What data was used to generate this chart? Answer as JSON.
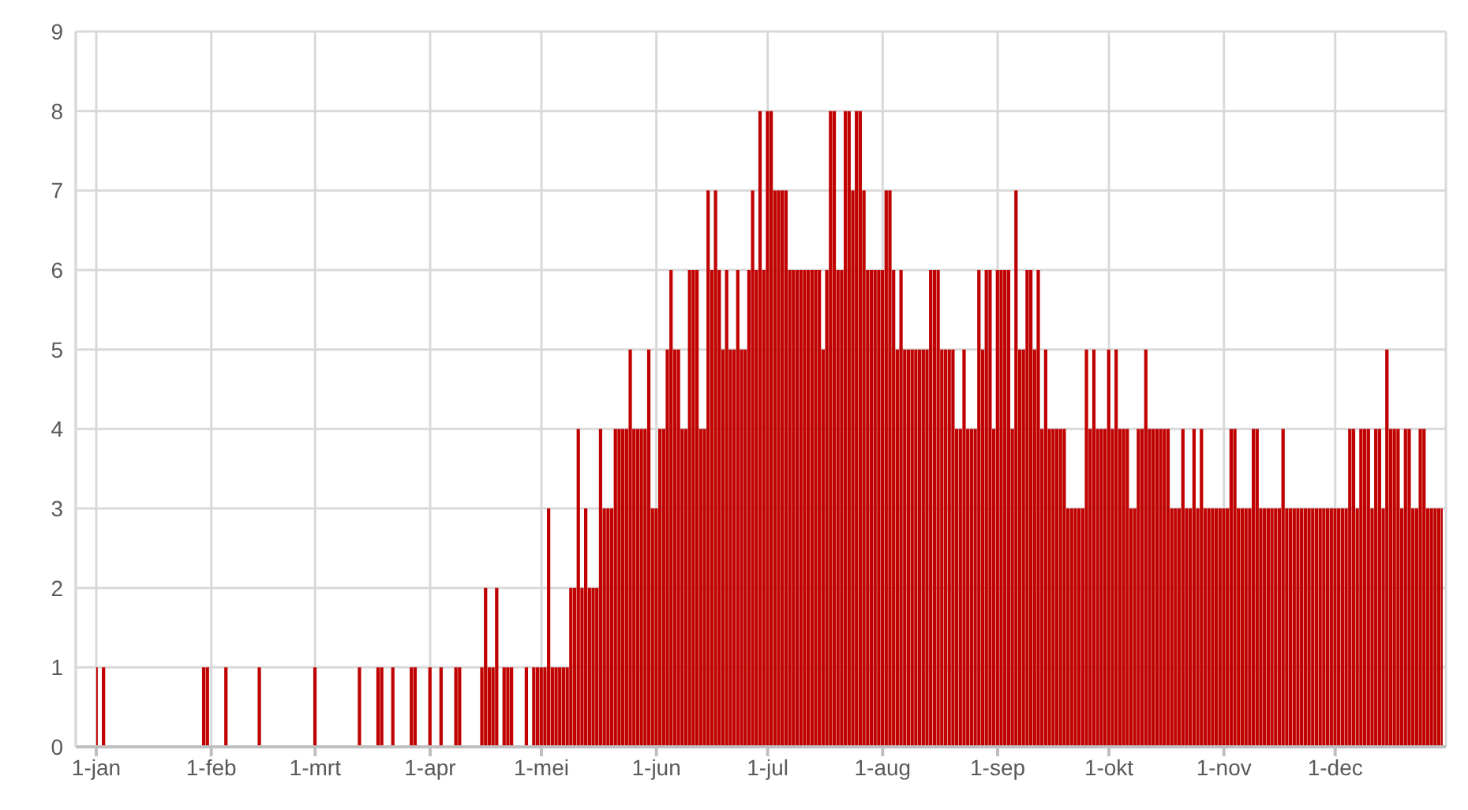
{
  "chart_data": {
    "type": "bar",
    "color": "#c00000",
    "grid": true,
    "ylim": [
      0,
      9
    ],
    "yticks": [
      0,
      1,
      2,
      3,
      4,
      5,
      6,
      7,
      8,
      9
    ],
    "xlim": [
      "--01-01",
      "--12-30"
    ],
    "xticks": [
      {
        "value": "--01-01",
        "label": "1-jan"
      },
      {
        "value": "--02-01",
        "label": "1-feb"
      },
      {
        "value": "--03-01",
        "label": "1-mrt"
      },
      {
        "value": "--04-01",
        "label": "1-apr"
      },
      {
        "value": "--05-01",
        "label": "1-mei"
      },
      {
        "value": "--06-01",
        "label": "1-jun"
      },
      {
        "value": "--07-01",
        "label": "1-jul"
      },
      {
        "value": "--08-01",
        "label": "1-aug"
      },
      {
        "value": "--09-01",
        "label": "1-sep"
      },
      {
        "value": "--10-01",
        "label": "1-okt"
      },
      {
        "value": "--11-01",
        "label": "1-nov"
      },
      {
        "value": "--12-01",
        "label": "1-dec"
      }
    ],
    "x": [
      "--01-01",
      "--01-03",
      "--01-30",
      "--01-31",
      "--02-05",
      "--02-14",
      "--03-01",
      "--03-13",
      "--03-18",
      "--03-19",
      "--03-22",
      "--03-27",
      "--03-28",
      "--04-01",
      "--04-04",
      "--04-08",
      "--04-09",
      "--04-15",
      "--04-16",
      "--04-17",
      "--04-18",
      "--04-19",
      "--04-21",
      "--04-22",
      "--04-23",
      "--04-27",
      "--04-29",
      "--04-30",
      "--05-01",
      "--05-02",
      "--05-03",
      "--05-04",
      "--05-05",
      "--05-06",
      "--05-07",
      "--05-08",
      "--05-09",
      "--05-10",
      "--05-11",
      "--05-12",
      "--05-13",
      "--05-14",
      "--05-15",
      "--05-16",
      "--05-17",
      "--05-18",
      "--05-19",
      "--05-20",
      "--05-21",
      "--05-22",
      "--05-23",
      "--05-24",
      "--05-25",
      "--05-26",
      "--05-27",
      "--05-28",
      "--05-29",
      "--05-30",
      "--05-31",
      "--06-01",
      "--06-02",
      "--06-03",
      "--06-04",
      "--06-05",
      "--06-06",
      "--06-07",
      "--06-08",
      "--06-09",
      "--06-10",
      "--06-11",
      "--06-12",
      "--06-13",
      "--06-14",
      "--06-15",
      "--06-16",
      "--06-17",
      "--06-18",
      "--06-19",
      "--06-20",
      "--06-21",
      "--06-22",
      "--06-23",
      "--06-24",
      "--06-25",
      "--06-26",
      "--06-27",
      "--06-28",
      "--06-29",
      "--06-30",
      "--07-01",
      "--07-02",
      "--07-03",
      "--07-04",
      "--07-05",
      "--07-06",
      "--07-07",
      "--07-08",
      "--07-09",
      "--07-10",
      "--07-11",
      "--07-12",
      "--07-13",
      "--07-14",
      "--07-15",
      "--07-16",
      "--07-17",
      "--07-18",
      "--07-19",
      "--07-20",
      "--07-21",
      "--07-22",
      "--07-23",
      "--07-24",
      "--07-25",
      "--07-26",
      "--07-27",
      "--07-28",
      "--07-29",
      "--07-30",
      "--07-31",
      "--08-01",
      "--08-02",
      "--08-03",
      "--08-04",
      "--08-05",
      "--08-06",
      "--08-07",
      "--08-08",
      "--08-09",
      "--08-10",
      "--08-11",
      "--08-12",
      "--08-13",
      "--08-14",
      "--08-15",
      "--08-16",
      "--08-17",
      "--08-18",
      "--08-19",
      "--08-20",
      "--08-21",
      "--08-22",
      "--08-23",
      "--08-24",
      "--08-25",
      "--08-26",
      "--08-27",
      "--08-28",
      "--08-29",
      "--08-30",
      "--08-31",
      "--09-01",
      "--09-02",
      "--09-03",
      "--09-04",
      "--09-05",
      "--09-06",
      "--09-07",
      "--09-08",
      "--09-09",
      "--09-10",
      "--09-11",
      "--09-12",
      "--09-13",
      "--09-14",
      "--09-15",
      "--09-16",
      "--09-17",
      "--09-18",
      "--09-19",
      "--09-20",
      "--09-21",
      "--09-22",
      "--09-23",
      "--09-24",
      "--09-25",
      "--09-26",
      "--09-27",
      "--09-28",
      "--09-29",
      "--09-30",
      "--10-01",
      "--10-02",
      "--10-03",
      "--10-04",
      "--10-05",
      "--10-06",
      "--10-07",
      "--10-08",
      "--10-09",
      "--10-10",
      "--10-11",
      "--10-12",
      "--10-13",
      "--10-14",
      "--10-15",
      "--10-16",
      "--10-17",
      "--10-18",
      "--10-19",
      "--10-20",
      "--10-21",
      "--10-22",
      "--10-23",
      "--10-24",
      "--10-25",
      "--10-26",
      "--10-27",
      "--10-28",
      "--10-29",
      "--10-30",
      "--10-31",
      "--11-01",
      "--11-02",
      "--11-03",
      "--11-04",
      "--11-05",
      "--11-06",
      "--11-07",
      "--11-08",
      "--11-09",
      "--11-10",
      "--11-11",
      "--11-12",
      "--11-13",
      "--11-14",
      "--11-15",
      "--11-16",
      "--11-17",
      "--11-18",
      "--11-19",
      "--11-20",
      "--11-21",
      "--11-22",
      "--11-23",
      "--11-24",
      "--11-25",
      "--11-26",
      "--11-27",
      "--11-28",
      "--11-29",
      "--11-30",
      "--12-01",
      "--12-02",
      "--12-03",
      "--12-04",
      "--12-05",
      "--12-06",
      "--12-07",
      "--12-08",
      "--12-09",
      "--12-10",
      "--12-11",
      "--12-12",
      "--12-13",
      "--12-14",
      "--12-15",
      "--12-16",
      "--12-17",
      "--12-18",
      "--12-19",
      "--12-20",
      "--12-21",
      "--12-22",
      "--12-23",
      "--12-24",
      "--12-25",
      "--12-26",
      "--12-27",
      "--12-28",
      "--12-29",
      "--12-30"
    ],
    "values": [
      1,
      1,
      1,
      1,
      1,
      1,
      1,
      1,
      1,
      1,
      1,
      1,
      1,
      1,
      1,
      1,
      1,
      1,
      2,
      1,
      1,
      2,
      1,
      1,
      1,
      1,
      1,
      1,
      1,
      1,
      3,
      1,
      1,
      1,
      1,
      1,
      2,
      2,
      4,
      2,
      3,
      2,
      2,
      2,
      4,
      3,
      3,
      3,
      4,
      4,
      4,
      4,
      5,
      4,
      4,
      4,
      4,
      5,
      3,
      3,
      4,
      4,
      5,
      6,
      5,
      5,
      4,
      4,
      6,
      6,
      6,
      4,
      4,
      7,
      6,
      7,
      6,
      5,
      6,
      5,
      5,
      6,
      5,
      5,
      6,
      7,
      6,
      8,
      6,
      8,
      8,
      7,
      7,
      7,
      7,
      6,
      6,
      6,
      6,
      6,
      6,
      6,
      6,
      6,
      5,
      6,
      8,
      8,
      6,
      6,
      8,
      8,
      7,
      8,
      8,
      7,
      6,
      6,
      6,
      6,
      6,
      7,
      7,
      6,
      5,
      6,
      5,
      5,
      5,
      5,
      5,
      5,
      5,
      6,
      6,
      6,
      5,
      5,
      5,
      5,
      4,
      4,
      5,
      4,
      4,
      4,
      6,
      5,
      6,
      6,
      4,
      6,
      6,
      6,
      6,
      4,
      7,
      5,
      5,
      6,
      6,
      5,
      6,
      4,
      5,
      4,
      4,
      4,
      4,
      4,
      3,
      3,
      3,
      3,
      3,
      5,
      4,
      5,
      4,
      4,
      4,
      5,
      4,
      5,
      4,
      4,
      4,
      3,
      3,
      4,
      4,
      5,
      4,
      4,
      4,
      4,
      4,
      4,
      3,
      3,
      3,
      4,
      3,
      3,
      4,
      3,
      4,
      3,
      3,
      3,
      3,
      3,
      3,
      3,
      4,
      4,
      3,
      3,
      3,
      3,
      4,
      4,
      3,
      3,
      3,
      3,
      3,
      3,
      4,
      3,
      3,
      3,
      3,
      3,
      3,
      3,
      3,
      3,
      3,
      3,
      3,
      3,
      3,
      3,
      3,
      3,
      4,
      4,
      3,
      4,
      4,
      4,
      3,
      4,
      4,
      3,
      5,
      4,
      4,
      4,
      3,
      4,
      4,
      3,
      3,
      4,
      4,
      3,
      3,
      3,
      3,
      3
    ]
  }
}
